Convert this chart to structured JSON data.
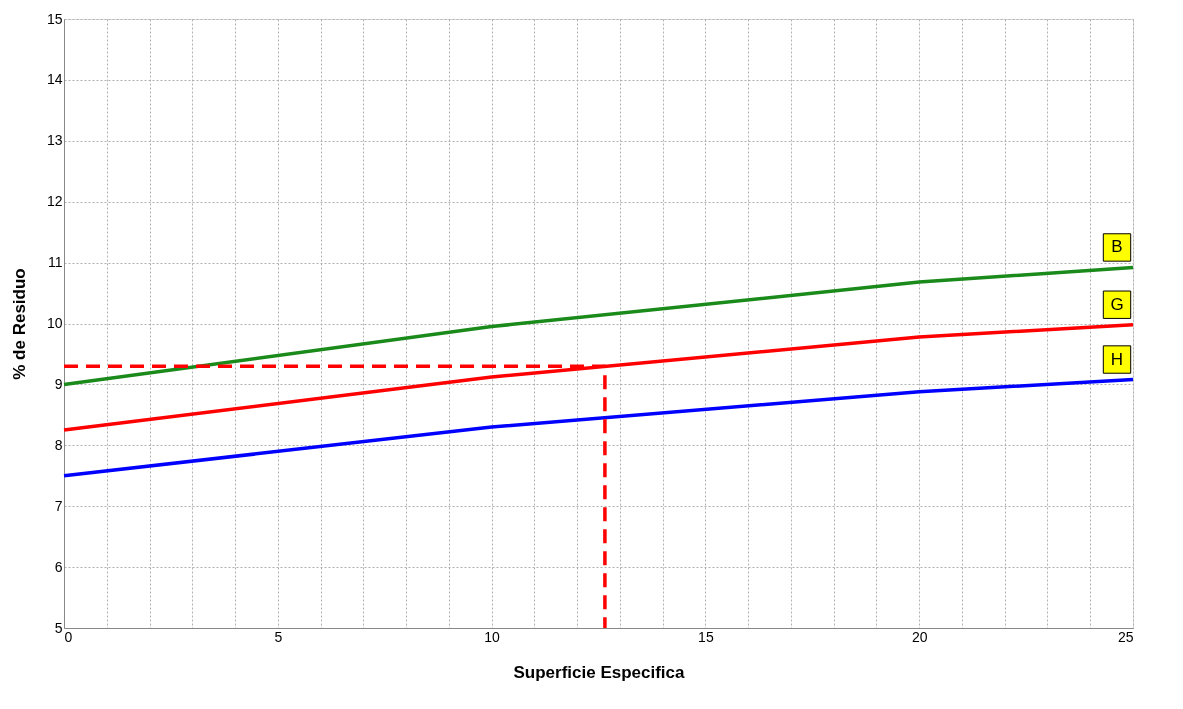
{
  "chart_data": {
    "type": "line",
    "xlabel": "Superficie Especifica",
    "ylabel": "% de Residuo",
    "xlim": [
      0,
      25
    ],
    "ylim": [
      5,
      15
    ],
    "xticks": [
      0,
      {
        "value": 1,
        "label": null
      },
      {
        "value": 2,
        "label": null
      },
      {
        "value": 3,
        "label": null
      },
      {
        "value": 4,
        "label": null
      },
      5,
      {
        "value": 6,
        "label": null
      },
      {
        "value": 7,
        "label": null
      },
      {
        "value": 8,
        "label": null
      },
      {
        "value": 9,
        "label": null
      },
      10,
      {
        "value": 11,
        "label": null
      },
      {
        "value": 12,
        "label": null
      },
      {
        "value": 13,
        "label": null
      },
      {
        "value": 14,
        "label": null
      },
      15,
      {
        "value": 16,
        "label": null
      },
      {
        "value": 17,
        "label": null
      },
      {
        "value": 18,
        "label": null
      },
      {
        "value": 19,
        "label": null
      },
      20,
      {
        "value": 21,
        "label": null
      },
      {
        "value": 22,
        "label": null
      },
      {
        "value": 23,
        "label": null
      },
      {
        "value": 24,
        "label": null
      },
      25
    ],
    "yticks": [
      5,
      6,
      7,
      8,
      9,
      10,
      11,
      12,
      13,
      14,
      15
    ],
    "grid": true,
    "legend": false,
    "marker": "none",
    "series": [
      {
        "name": "B",
        "color": "#1a8a1a",
        "x": [
          0,
          10,
          20,
          25
        ],
        "values": [
          9.0,
          9.95,
          10.68,
          10.92
        ],
        "line_style": "solid"
      },
      {
        "name": "G",
        "color": "#ff0000",
        "x": [
          0,
          10,
          20,
          25
        ],
        "values": [
          8.25,
          9.12,
          9.78,
          9.98
        ],
        "line_style": "solid"
      },
      {
        "name": "H",
        "color": "#0000ff",
        "x": [
          0,
          10,
          20,
          25
        ],
        "values": [
          7.5,
          8.3,
          8.88,
          9.08
        ],
        "line_style": "solid"
      },
      {
        "color": "#ff0000",
        "x": [
          0,
          12.65,
          12.65
        ],
        "values": [
          9.3,
          9.3,
          5
        ],
        "line_style": "dashed"
      }
    ]
  }
}
